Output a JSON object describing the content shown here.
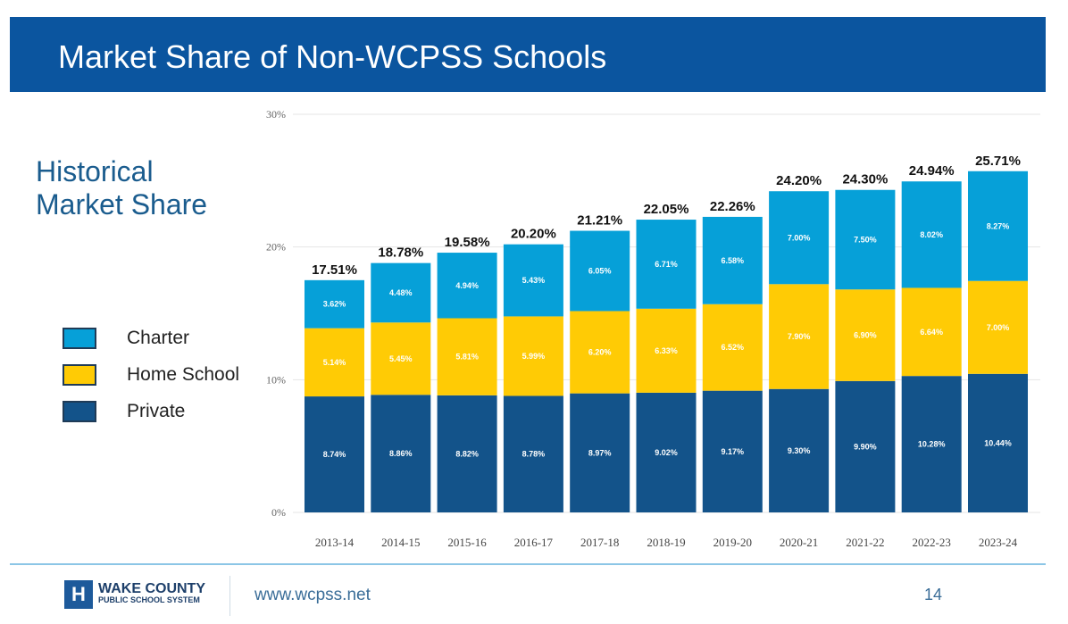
{
  "header": {
    "title": "Market Share of Non-WCPSS Schools"
  },
  "subtitle": {
    "line1": "Historical",
    "line2": "Market Share"
  },
  "footer": {
    "logo_line1": "WAKE COUNTY",
    "logo_line2": "PUBLIC SCHOOL SYSTEM",
    "url": "www.wcpss.net",
    "page": "14"
  },
  "chart_data": {
    "type": "bar",
    "stacked": true,
    "title": "Historical Market Share",
    "xlabel": "",
    "ylabel": "",
    "ylim": [
      0,
      30
    ],
    "yticks": [
      "0%",
      "10%",
      "20%",
      "30%"
    ],
    "grid": true,
    "legend_placement": "left",
    "categories": [
      "2013-14",
      "2014-15",
      "2015-16",
      "2016-17",
      "2017-18",
      "2018-19",
      "2019-20",
      "2020-21",
      "2021-22",
      "2022-23",
      "2023-24"
    ],
    "series": [
      {
        "name": "Private",
        "color": "#13538a",
        "values": [
          8.74,
          8.86,
          8.82,
          8.78,
          8.97,
          9.02,
          9.17,
          9.3,
          9.9,
          10.28,
          10.44
        ]
      },
      {
        "name": "Home School",
        "color": "#ffcb05",
        "values": [
          5.14,
          5.45,
          5.81,
          5.99,
          6.2,
          6.33,
          6.52,
          7.9,
          6.9,
          6.64,
          7.0
        ]
      },
      {
        "name": "Charter",
        "color": "#06a0d8",
        "values": [
          3.62,
          4.48,
          4.94,
          5.43,
          6.05,
          6.71,
          6.58,
          7.0,
          7.5,
          8.02,
          8.27
        ]
      }
    ],
    "totals": [
      "17.51%",
      "18.78%",
      "19.58%",
      "20.20%",
      "21.21%",
      "22.05%",
      "22.26%",
      "24.20%",
      "24.30%",
      "24.94%",
      "25.71%"
    ]
  }
}
